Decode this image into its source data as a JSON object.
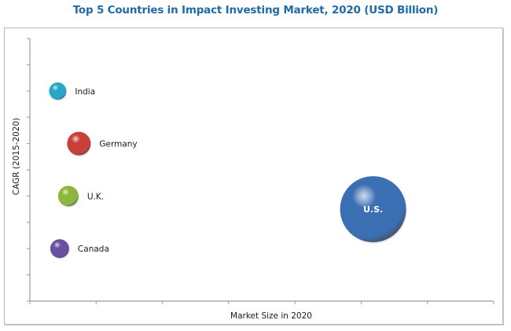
{
  "chart_data": {
    "type": "bubble",
    "title": "Top 5 Countries in Impact Investing Market, 2020 (USD Billion)",
    "xlabel": "Market Size in 2020",
    "ylabel": "CAGR (2015-2020)",
    "xlim": [
      0,
      7
    ],
    "ylim": [
      0,
      10
    ],
    "x_ticks": 7,
    "y_ticks": 10,
    "grid": false,
    "legend": "none",
    "series": [
      {
        "name": "India",
        "x": 0.42,
        "y": 8,
        "size": 11,
        "color": "#2aa6c9",
        "label_inside": false
      },
      {
        "name": "Germany",
        "x": 0.74,
        "y": 6,
        "size": 15,
        "color": "#c8403a",
        "label_inside": false
      },
      {
        "name": "U.K.",
        "x": 0.58,
        "y": 4,
        "size": 13,
        "color": "#8db63c",
        "label_inside": false
      },
      {
        "name": "Canada",
        "x": 0.45,
        "y": 2,
        "size": 12,
        "color": "#6a4fa3",
        "label_inside": false
      },
      {
        "name": "U.S.",
        "x": 5.18,
        "y": 3.5,
        "size": 42,
        "color": "#3b6fb3",
        "label_inside": true
      }
    ]
  }
}
